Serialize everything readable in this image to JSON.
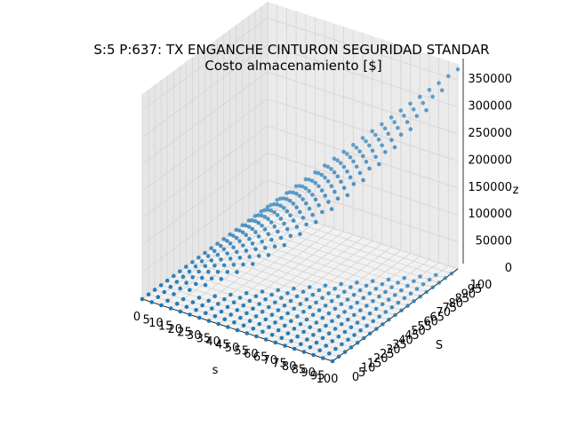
{
  "chart_data": {
    "type": "scatter3d",
    "title_line1": "S:5 P:637: TX ENGANCHE CINTURON SEGURIDAD STANDAR",
    "title_line2": "Costo almacenamiento [$]",
    "xlabel": "s",
    "ylabel": "S",
    "zlabel": "z",
    "x_ticks": [
      "0",
      "5",
      "10",
      "15",
      "20",
      "25",
      "30",
      "35",
      "40",
      "45",
      "50",
      "55",
      "60",
      "65",
      "70",
      "75",
      "80",
      "85",
      "90",
      "95",
      "100"
    ],
    "y_ticks": [
      "0",
      "5",
      "10",
      "15",
      "20",
      "25",
      "30",
      "35",
      "40",
      "45",
      "50",
      "55",
      "60",
      "65",
      "70",
      "75",
      "80",
      "85",
      "90",
      "95",
      "100"
    ],
    "z_ticks": [
      "0",
      "50000",
      "100000",
      "150000",
      "200000",
      "250000",
      "300000",
      "350000"
    ],
    "xlim": [
      0,
      100
    ],
    "ylim": [
      0,
      100
    ],
    "zlim": [
      0,
      380000
    ],
    "grid": true,
    "marker_color": "#1f77b4",
    "x_values": [
      0,
      5,
      10,
      15,
      20,
      25,
      30,
      35,
      40,
      45,
      50,
      55,
      60,
      65,
      70,
      75,
      80,
      85,
      90,
      95,
      100
    ],
    "y_values": [
      0,
      5,
      10,
      15,
      20,
      25,
      30,
      35,
      40,
      45,
      50,
      55,
      60,
      65,
      70,
      75,
      80,
      85,
      90,
      95,
      100
    ],
    "z_model": "z = 0 for S < s (and s = 0); otherwise z ≈ 37 · s · S, reaching about 370000 at s = 100, S = 100"
  }
}
